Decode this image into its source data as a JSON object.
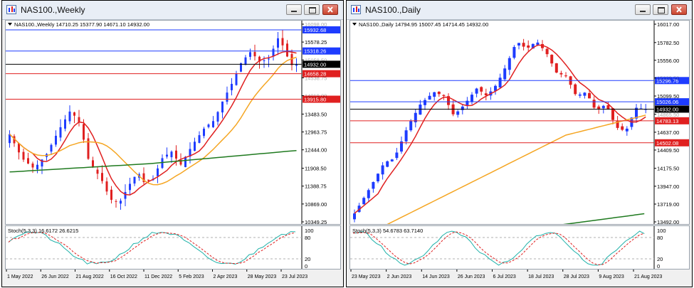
{
  "windows": [
    {
      "title": "NAS100.,Weekly",
      "info": "NAS100.,Weekly  14710.25 15377.90 14671.10 14932.00",
      "price_labels": [
        "16098.00",
        "15578.25",
        "15058.50",
        "14538.75",
        "14019.00",
        "13483.50",
        "12963.75",
        "12444.00",
        "11908.50",
        "11388.75",
        "10869.00",
        "10349.25"
      ],
      "hlines": [
        {
          "price": "15932.68",
          "color": "#1e3cff"
        },
        {
          "price": "15318.26",
          "color": "#1e3cff"
        },
        {
          "price": "14932.00",
          "color": "#000000"
        },
        {
          "price": "14658.28",
          "color": "#e02020"
        },
        {
          "price": "13915.80",
          "color": "#e02020"
        }
      ],
      "stoch_label": "Stoch(5,3,3) 16.6172 26.6215",
      "stoch_levels": [
        "100",
        "80",
        "20",
        "0"
      ],
      "time_labels": [
        "1 May 2022",
        "26 Jun 2022",
        "21 Aug 2022",
        "16 Oct 2022",
        "11 Dec 2022",
        "5 Feb 2023",
        "2 Apr 2023",
        "28 May 2023",
        "23 Jul 2023"
      ]
    },
    {
      "title": "NAS100.,Daily",
      "info": "NAS100.,Daily  14794.95 15007.45 14714.45 14932.00",
      "price_labels": [
        "16017.00",
        "15782.50",
        "15556.00",
        "15329.50",
        "15099.50",
        "14865.50",
        "14637.00",
        "14409.50",
        "14175.50",
        "13947.00",
        "13719.00",
        "13492.00"
      ],
      "hlines": [
        {
          "price": "15296.76",
          "color": "#1e3cff"
        },
        {
          "price": "15026.06",
          "color": "#1e3cff"
        },
        {
          "price": "14932.00",
          "color": "#000000"
        },
        {
          "price": "14783.13",
          "color": "#e02020"
        },
        {
          "price": "14502.08",
          "color": "#e02020"
        }
      ],
      "stoch_label": "Stoch(5,3,3) 54.6783 63.7140",
      "stoch_levels": [
        "100",
        "80",
        "20",
        "0"
      ],
      "time_labels": [
        "23 May 2023",
        "2 Jun 2023",
        "14 Jun 2023",
        "26 Jun 2023",
        "6 Jul 2023",
        "18 Jul 2023",
        "28 Jul 2023",
        "9 Aug 2023",
        "21 Aug 2023"
      ]
    }
  ],
  "colors": {
    "bull_candle": "#1e3cff",
    "bear_candle": "#e02020",
    "ma_fast": "#e02020",
    "ma_mid": "#f5a623",
    "ma_slow": "#1f7a1f",
    "stoch_main": "#20b2aa",
    "stoch_signal": "#e02020"
  },
  "icons": [
    "chart-window-icon",
    "minimize-icon",
    "maximize-icon",
    "close-icon"
  ]
}
